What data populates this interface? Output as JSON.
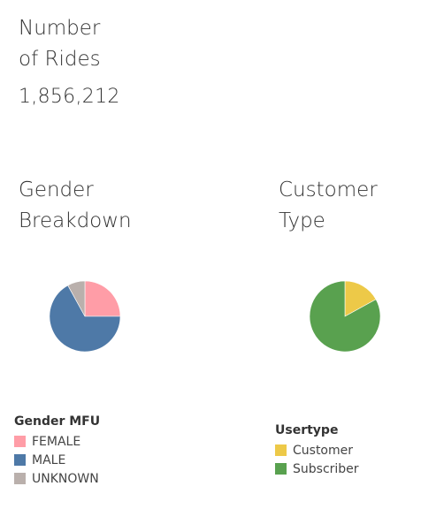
{
  "metric": {
    "title_line1": "Number",
    "title_line2": "of Rides",
    "value": "1,856,212"
  },
  "gender_panel": {
    "title_line1": "Gender",
    "title_line2": "Breakdown"
  },
  "type_panel": {
    "title_line1": "Customer",
    "title_line2": "Type"
  },
  "gender_legend": {
    "title": "Gender MFU",
    "items": [
      {
        "label": "FEMALE",
        "color": "#ff9da7"
      },
      {
        "label": "MALE",
        "color": "#4e79a7"
      },
      {
        "label": "UNKNOWN",
        "color": "#bab0ac"
      }
    ]
  },
  "type_legend": {
    "title": "Usertype",
    "items": [
      {
        "label": "Customer",
        "color": "#edc948"
      },
      {
        "label": "Subscriber",
        "color": "#59a14f"
      }
    ]
  },
  "chart_data": [
    {
      "type": "pie",
      "title": "Gender Breakdown",
      "legend_title": "Gender MFU",
      "categories": [
        "FEMALE",
        "MALE",
        "UNKNOWN"
      ],
      "values": [
        25,
        67,
        8
      ],
      "colors": [
        "#ff9da7",
        "#4e79a7",
        "#bab0ac"
      ],
      "legend_placement": "bottom-left"
    },
    {
      "type": "pie",
      "title": "Customer Type",
      "legend_title": "Usertype",
      "categories": [
        "Customer",
        "Subscriber"
      ],
      "values": [
        17,
        83
      ],
      "colors": [
        "#edc948",
        "#59a14f"
      ],
      "legend_placement": "bottom"
    }
  ]
}
